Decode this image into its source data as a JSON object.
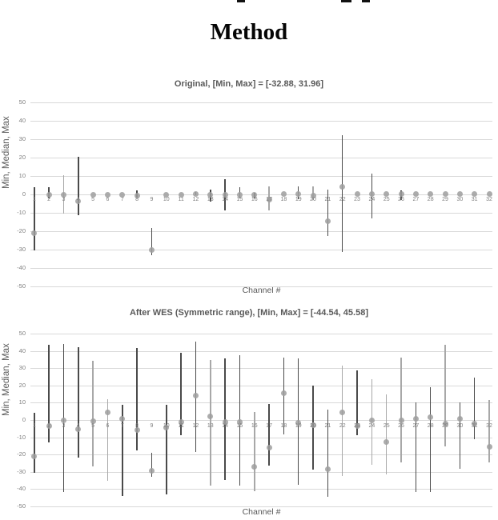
{
  "page": {
    "method_title": "Method",
    "note": "cropped text remnants visible at very top edge"
  },
  "chart_data": [
    {
      "type": "scatter",
      "title": "Original, [Min, Max] = [-32.88, 31.96]",
      "xlabel": "Channel #",
      "ylabel": "Min, Median, Max",
      "ylim": [
        -50,
        50
      ],
      "ytick_step": 10,
      "grid": true,
      "legend": "none",
      "categories": [
        1,
        2,
        3,
        4,
        5,
        6,
        7,
        8,
        9,
        10,
        11,
        12,
        13,
        14,
        15,
        16,
        17,
        18,
        19,
        20,
        21,
        22,
        23,
        24,
        25,
        26,
        27,
        28,
        29,
        30,
        31,
        32
      ],
      "series": [
        {
          "name": "Max",
          "values": [
            4,
            4,
            10.5,
            20.5,
            0,
            0,
            0,
            2.3,
            -18.3,
            0,
            0,
            1.5,
            2.8,
            8.2,
            4,
            1,
            4.2,
            0.3,
            4.5,
            4.2,
            2.7,
            31.96,
            0.3,
            11.4,
            0.3,
            2.2,
            0.3,
            0.3,
            0.3,
            0.3,
            0.3,
            0.3
          ]
        },
        {
          "name": "Median",
          "values": [
            -21,
            0,
            0,
            -3.5,
            0,
            0,
            0,
            -0.5,
            -30,
            0,
            0,
            0.3,
            0,
            0,
            0,
            -0.3,
            -2.7,
            0.3,
            0.3,
            -0.5,
            -14.7,
            4.3,
            0.3,
            0.3,
            0.3,
            0.3,
            0.3,
            0.3,
            0.3,
            0.3,
            0.3,
            0.3
          ]
        },
        {
          "name": "Min",
          "values": [
            -30.5,
            -2,
            -10.5,
            -11.3,
            0,
            0,
            0,
            -1.5,
            -32.88,
            0,
            0,
            -0.5,
            -4,
            -8.5,
            -2,
            -2,
            -8.7,
            0.3,
            -2.5,
            -3,
            -22.4,
            -31.3,
            0.3,
            -13,
            0.3,
            -3,
            0.3,
            0.3,
            0.3,
            0.3,
            0.3,
            0.3
          ]
        }
      ],
      "line_shades": [
        "dark",
        "dark",
        "light",
        "dark",
        "dark",
        "dark",
        "dark",
        "dark",
        "dark",
        "dark",
        "dark",
        "dark",
        "dark",
        "dark",
        "dark",
        "dark",
        "light",
        "dark",
        "dark",
        "light",
        "dark",
        "dark",
        "dark",
        "dark",
        "dark",
        "dark",
        "dark",
        "dark",
        "dark",
        "dark",
        "dark",
        "dark"
      ],
      "colors": {
        "marker": "#9e9e9e",
        "line_dark": "#4a4a4a",
        "line_light": "#a8a8a8",
        "grid": "#d9d9d9",
        "text": "#595959",
        "tick": "#7f7f7f"
      }
    },
    {
      "type": "scatter",
      "title": "After WES (Symmetric range), [Min, Max] = [-44.54, 45.58]",
      "xlabel": "Channel #",
      "ylabel": "Min, Median, Max",
      "ylim": [
        -50,
        50
      ],
      "ytick_step": 10,
      "grid": true,
      "legend": "none",
      "categories": [
        1,
        2,
        3,
        4,
        5,
        6,
        7,
        8,
        9,
        10,
        11,
        12,
        13,
        14,
        15,
        16,
        17,
        18,
        19,
        20,
        21,
        22,
        23,
        24,
        25,
        26,
        27,
        28,
        29,
        30,
        31,
        32
      ],
      "series": [
        {
          "name": "Max",
          "values": [
            4.2,
            43.5,
            44,
            42,
            34.4,
            12.2,
            8.8,
            41.8,
            -19,
            9,
            39,
            45.58,
            34.7,
            35.6,
            37.5,
            4.6,
            9.3,
            36,
            35.6,
            20,
            6,
            31.5,
            28.7,
            23.6,
            14.8,
            36,
            10,
            19,
            43.5,
            10,
            24.5,
            11.6
          ]
        },
        {
          "name": "Median",
          "values": [
            -21,
            -3.4,
            0,
            -5.2,
            -0.6,
            4.3,
            0.6,
            -6,
            -29.6,
            -4.6,
            -1,
            13.9,
            2.3,
            -1,
            -1,
            -27,
            -16,
            15.3,
            -1.4,
            -2.8,
            -28.7,
            4.2,
            -3.7,
            0,
            -12.5,
            0,
            0.5,
            1.4,
            -1.9,
            0.9,
            -1.9,
            -15.3
          ]
        },
        {
          "name": "Min",
          "values": [
            -30.5,
            -13,
            -41.6,
            -21.9,
            -27,
            -35,
            -44,
            -17.6,
            -32.8,
            -43,
            -8.8,
            -18.3,
            -38,
            -34.7,
            -38,
            -41.3,
            -26.5,
            -8.5,
            -37.4,
            -28.5,
            -44.54,
            -32.3,
            -8.8,
            -25.9,
            -31.6,
            -24.7,
            -41.9,
            -41.9,
            -15.4,
            -28.2,
            -11.1,
            -24.7
          ]
        }
      ],
      "line_shades": [
        "dark",
        "dark",
        "dark",
        "dark",
        "light",
        "light",
        "dark",
        "dark",
        "dark",
        "dark",
        "dark",
        "dark",
        "light",
        "dark",
        "dark",
        "light",
        "dark",
        "dark",
        "dark",
        "dark",
        "dark",
        "light",
        "dark",
        "light",
        "light",
        "light",
        "dark",
        "dark",
        "light",
        "dark",
        "dark",
        "light"
      ],
      "colors": {
        "marker": "#9e9e9e",
        "line_dark": "#4a4a4a",
        "line_light": "#a8a8a8",
        "grid": "#d9d9d9",
        "text": "#595959",
        "tick": "#7f7f7f"
      }
    }
  ]
}
